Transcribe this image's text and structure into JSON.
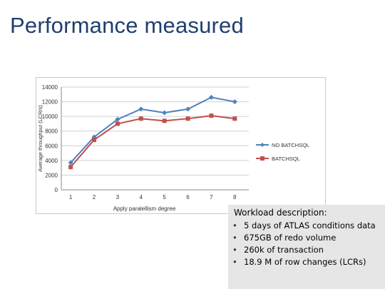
{
  "slide": {
    "title": "Performance measured"
  },
  "chart_data": {
    "type": "line",
    "x": [
      1,
      2,
      3,
      4,
      5,
      6,
      7,
      8
    ],
    "xlabel": "Apply paralellism degree",
    "ylabel": "Average throughput (LCR/s)",
    "ylim": [
      0,
      14000
    ],
    "yticks": [
      0,
      2000,
      4000,
      6000,
      8000,
      10000,
      12000,
      14000
    ],
    "grid": true,
    "legend_position": "right",
    "series": [
      {
        "name": "NO BATCHSQL",
        "color": "#4f81bd",
        "marker": "diamond",
        "values": [
          3700,
          7200,
          9600,
          11000,
          10500,
          11000,
          12600,
          12000
        ]
      },
      {
        "name": "BATCHSQL",
        "color": "#c0504d",
        "marker": "square",
        "values": [
          3100,
          6800,
          9000,
          9700,
          9400,
          9700,
          10100,
          9700
        ]
      }
    ]
  },
  "workload": {
    "title": "Workload description:",
    "items": [
      "5 days of ATLAS conditions data",
      "675GB of redo volume",
      "260k of transaction",
      "18.9 M of row changes (LCRs)"
    ]
  }
}
